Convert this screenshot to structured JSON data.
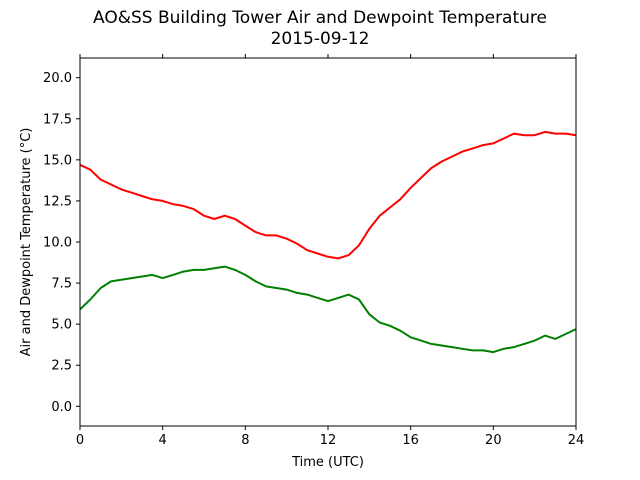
{
  "chart_data": {
    "type": "line",
    "title": "AO&SS Building Tower Air and Dewpoint Temperature",
    "subtitle": "2015-09-12",
    "xlabel": "Time (UTC)",
    "ylabel": "Air and Dewpoint Temperature (°C)",
    "xlim": [
      0,
      24
    ],
    "ylim": [
      -1.2,
      21.2
    ],
    "xticks": [
      0,
      4,
      8,
      12,
      16,
      20,
      24
    ],
    "xtick_labels": [
      "0",
      "4",
      "8",
      "12",
      "16",
      "20",
      "24"
    ],
    "yticks": [
      0.0,
      2.5,
      5.0,
      7.5,
      10.0,
      12.5,
      15.0,
      17.5,
      20.0
    ],
    "ytick_labels": [
      "0.0",
      "2.5",
      "5.0",
      "7.5",
      "10.0",
      "12.5",
      "15.0",
      "17.5",
      "20.0"
    ],
    "grid": false,
    "legend": "none",
    "series": [
      {
        "color": "#ff0000",
        "x": [
          0,
          0.5,
          1,
          1.5,
          2,
          2.5,
          3,
          3.5,
          4,
          4.5,
          5,
          5.5,
          6,
          6.5,
          7,
          7.5,
          8,
          8.5,
          9,
          9.5,
          10,
          10.5,
          11,
          11.5,
          12,
          12.5,
          13,
          13.5,
          14,
          14.5,
          15,
          15.5,
          16,
          16.5,
          17,
          17.5,
          18,
          18.5,
          19,
          19.5,
          20,
          20.5,
          21,
          21.5,
          22,
          22.5,
          23,
          23.5,
          24
        ],
        "y": [
          14.7,
          14.4,
          13.8,
          13.5,
          13.2,
          13.0,
          12.8,
          12.6,
          12.5,
          12.3,
          12.2,
          12.0,
          11.6,
          11.4,
          11.6,
          11.4,
          11.0,
          10.6,
          10.4,
          10.4,
          10.2,
          9.9,
          9.5,
          9.3,
          9.1,
          9.0,
          9.2,
          9.8,
          10.8,
          11.6,
          12.1,
          12.6,
          13.3,
          13.9,
          14.5,
          14.9,
          15.2,
          15.5,
          15.7,
          15.9,
          16.0,
          16.3,
          16.6,
          16.5,
          16.5,
          16.7,
          16.6,
          16.6,
          16.5
        ]
      },
      {
        "color": "#008000",
        "x": [
          0,
          0.5,
          1,
          1.5,
          2,
          2.5,
          3,
          3.5,
          4,
          4.5,
          5,
          5.5,
          6,
          6.5,
          7,
          7.5,
          8,
          8.5,
          9,
          9.5,
          10,
          10.5,
          11,
          11.5,
          12,
          12.5,
          13,
          13.5,
          14,
          14.5,
          15,
          15.5,
          16,
          16.5,
          17,
          17.5,
          18,
          18.5,
          19,
          19.5,
          20,
          20.5,
          21,
          21.5,
          22,
          22.5,
          23,
          23.5,
          24
        ],
        "y": [
          5.9,
          6.5,
          7.2,
          7.6,
          7.7,
          7.8,
          7.9,
          8.0,
          7.8,
          8.0,
          8.2,
          8.3,
          8.3,
          8.4,
          8.5,
          8.3,
          8.0,
          7.6,
          7.3,
          7.2,
          7.1,
          6.9,
          6.8,
          6.6,
          6.4,
          6.6,
          6.8,
          6.5,
          5.6,
          5.1,
          4.9,
          4.6,
          4.2,
          4.0,
          3.8,
          3.7,
          3.6,
          3.5,
          3.4,
          3.4,
          3.3,
          3.5,
          3.6,
          3.8,
          4.0,
          4.3,
          4.1,
          4.4,
          4.7
        ]
      }
    ]
  }
}
